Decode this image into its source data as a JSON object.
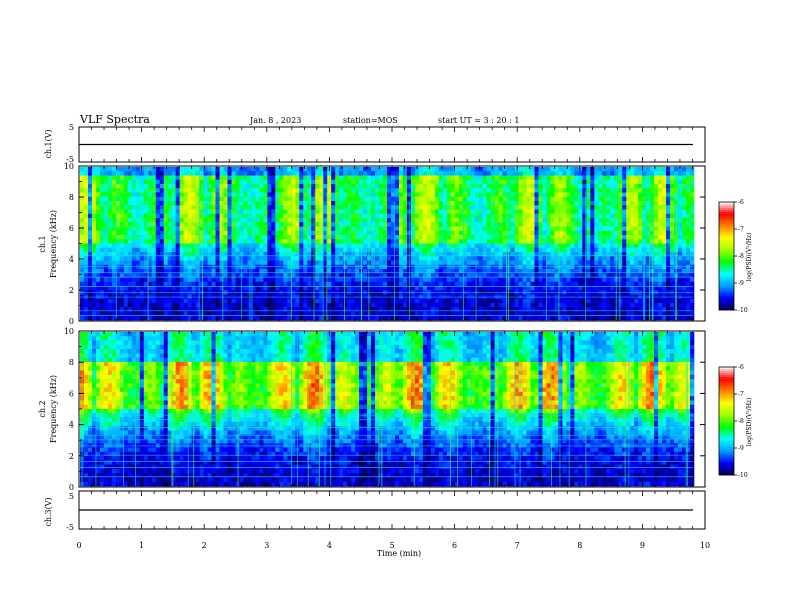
{
  "header": {
    "title": "VLF Spectra",
    "date": "Jan. 8 , 2023",
    "station": "station=MOS",
    "start_ut": "start UT = 3 : 20 : 1"
  },
  "axis": {
    "time_label": "Time (min)",
    "freq_label": "Frequency (kHz)",
    "ch1_wave_label": "ch.1(V)",
    "ch3_wave_label": "ch.3(V)",
    "ch1_spec_label": "ch.1",
    "ch2_spec_label": "ch.2",
    "colorbar_label": "log(PSD)(V²/Hz)"
  },
  "colors": {
    "background": "#000033",
    "colormap": [
      "#000050",
      "#0000ff",
      "#00a0ff",
      "#00ffff",
      "#00ff00",
      "#a0ff00",
      "#ffff00",
      "#ff8000",
      "#ff0000",
      "#ffffff"
    ]
  },
  "chart_data": [
    {
      "type": "line",
      "panel": "ch.1 waveform",
      "ylabel": "ch.1(V)",
      "ylim": [
        -5,
        5
      ],
      "yticks": [
        "5",
        "-5"
      ],
      "x": [
        0,
        10
      ],
      "values": [
        0,
        0
      ]
    },
    {
      "type": "heatmap",
      "panel": "ch.1 spectrogram",
      "xlabel": "Time (min)",
      "ylabel": "Frequency (kHz)",
      "xlim": [
        0,
        10
      ],
      "ylim": [
        0,
        10
      ],
      "yticks": [
        "0",
        "2",
        "4",
        "6",
        "8",
        "10"
      ],
      "colorbar": {
        "label": "log(PSD)(V²/Hz)",
        "range": [
          -10,
          -6
        ],
        "ticks": [
          "-6",
          "-7",
          "-8",
          "-9",
          "-10"
        ]
      },
      "peak_band_khz": [
        5,
        9.5
      ],
      "peak_log_psd": -7.5,
      "noise_lines_khz": [
        0.3,
        0.6,
        1.5,
        1.8,
        2.2,
        2.8,
        3.1,
        3.5,
        4.2
      ]
    },
    {
      "type": "heatmap",
      "panel": "ch.2 spectrogram",
      "xlabel": "Time (min)",
      "ylabel": "Frequency (kHz)",
      "xlim": [
        0,
        10
      ],
      "ylim": [
        0,
        10
      ],
      "yticks": [
        "0",
        "2",
        "4",
        "6",
        "8",
        "10"
      ],
      "colorbar": {
        "label": "log(PSD)(V²/Hz)",
        "range": [
          -10,
          -6
        ],
        "ticks": [
          "-6",
          "-7",
          "-8",
          "-9",
          "-10"
        ]
      },
      "peak_band_khz": [
        5,
        8
      ],
      "peak_log_psd": -6.8,
      "noise_lines_khz": [
        0.6,
        1.2,
        1.6,
        2.0,
        2.6,
        3.0,
        3.3,
        3.8,
        4.3,
        4.6
      ]
    },
    {
      "type": "line",
      "panel": "ch.3 waveform",
      "xlabel": "Time (min)",
      "ylabel": "ch.3(V)",
      "ylim": [
        -5,
        5
      ],
      "yticks": [
        "5",
        "-5"
      ],
      "xlim": [
        0,
        10
      ],
      "xticks": [
        "0",
        "1",
        "2",
        "3",
        "4",
        "5",
        "6",
        "7",
        "8",
        "9",
        "10"
      ],
      "x": [
        0,
        10
      ],
      "values": [
        0,
        0
      ]
    }
  ]
}
